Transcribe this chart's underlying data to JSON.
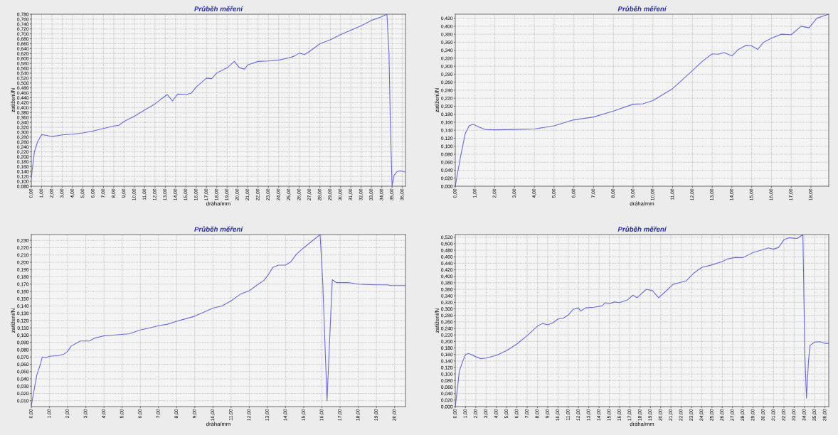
{
  "chart_data": [
    {
      "type": "line",
      "title": "Průběh měření",
      "xlabel": "dráha/mm",
      "ylabel": "zatížení/N",
      "grid": true,
      "x": [
        0,
        0.3,
        0.6,
        1.0,
        1.5,
        2,
        3,
        4,
        5,
        6,
        7,
        8,
        8.5,
        9,
        10,
        11,
        12,
        12.5,
        13.2,
        13.7,
        14.2,
        15,
        15.5,
        16,
        17,
        17.5,
        18,
        19,
        19.7,
        20.2,
        20.7,
        21,
        22,
        23,
        24,
        25,
        25.5,
        26,
        26.5,
        27,
        28,
        29,
        30,
        31,
        32,
        33,
        34,
        34.5,
        34.7,
        34.85,
        35.0,
        35.2,
        35.5,
        35.8,
        36.3
      ],
      "series": [
        {
          "color": "#6a6ae0",
          "values": [
            0.115,
            0.22,
            0.26,
            0.29,
            0.287,
            0.282,
            0.289,
            0.292,
            0.297,
            0.305,
            0.315,
            0.325,
            0.328,
            0.344,
            0.365,
            0.39,
            0.415,
            0.432,
            0.453,
            0.427,
            0.455,
            0.453,
            0.458,
            0.484,
            0.52,
            0.518,
            0.541,
            0.562,
            0.588,
            0.562,
            0.557,
            0.574,
            0.588,
            0.59,
            0.593,
            0.603,
            0.609,
            0.622,
            0.616,
            0.629,
            0.66,
            0.676,
            0.697,
            0.715,
            0.733,
            0.755,
            0.77,
            0.78,
            0.62,
            0.3,
            0.08,
            0.125,
            0.14,
            0.143,
            0.138
          ]
        }
      ],
      "xlim": [
        0,
        36.3
      ],
      "ylim": [
        0.08,
        0.78
      ],
      "xticks": [
        {
          "value": 0,
          "label": "0,00"
        },
        {
          "value": 1,
          "label": "1,00"
        },
        {
          "value": 2,
          "label": "2,00"
        },
        {
          "value": 3,
          "label": "3,00"
        },
        {
          "value": 4,
          "label": "4,00"
        },
        {
          "value": 5,
          "label": "5,00"
        },
        {
          "value": 6,
          "label": "6,00"
        },
        {
          "value": 7,
          "label": "7,00"
        },
        {
          "value": 8,
          "label": "8,00"
        },
        {
          "value": 9,
          "label": "9,00"
        },
        {
          "value": 10,
          "label": "10,00"
        },
        {
          "value": 11,
          "label": "11,00"
        },
        {
          "value": 12,
          "label": "12,00"
        },
        {
          "value": 13,
          "label": "13,00"
        },
        {
          "value": 14,
          "label": "14,00"
        },
        {
          "value": 15,
          "label": "15,00"
        },
        {
          "value": 16,
          "label": "16,00"
        },
        {
          "value": 17,
          "label": "17,00"
        },
        {
          "value": 18,
          "label": "18,00"
        },
        {
          "value": 19,
          "label": "19,00"
        },
        {
          "value": 20,
          "label": "20,00"
        },
        {
          "value": 21,
          "label": "21,00"
        },
        {
          "value": 22,
          "label": "22,00"
        },
        {
          "value": 23,
          "label": "23,00"
        },
        {
          "value": 24,
          "label": "24,00"
        },
        {
          "value": 25,
          "label": "25,00"
        },
        {
          "value": 26,
          "label": "26,00"
        },
        {
          "value": 27,
          "label": "27,00"
        },
        {
          "value": 28,
          "label": "28,00"
        },
        {
          "value": 29,
          "label": "29,00"
        },
        {
          "value": 30,
          "label": "30,00"
        },
        {
          "value": 31,
          "label": "31,00"
        },
        {
          "value": 32,
          "label": "32,00"
        },
        {
          "value": 33,
          "label": "33,00"
        },
        {
          "value": 34,
          "label": "34,00"
        },
        {
          "value": 35,
          "label": "35,00"
        },
        {
          "value": 36,
          "label": "36,00"
        }
      ],
      "yticks": [
        {
          "value": 0.08,
          "label": "0,080"
        },
        {
          "value": 0.1,
          "label": "0,100"
        },
        {
          "value": 0.12,
          "label": "0,120"
        },
        {
          "value": 0.14,
          "label": "0,140"
        },
        {
          "value": 0.16,
          "label": "0,160"
        },
        {
          "value": 0.18,
          "label": "0,180"
        },
        {
          "value": 0.2,
          "label": "0,200"
        },
        {
          "value": 0.22,
          "label": "0,220"
        },
        {
          "value": 0.24,
          "label": "0,240"
        },
        {
          "value": 0.26,
          "label": "0,260"
        },
        {
          "value": 0.28,
          "label": "0,280"
        },
        {
          "value": 0.3,
          "label": "0,300"
        },
        {
          "value": 0.32,
          "label": "0,320"
        },
        {
          "value": 0.34,
          "label": "0,340"
        },
        {
          "value": 0.36,
          "label": "0,360"
        },
        {
          "value": 0.38,
          "label": "0,380"
        },
        {
          "value": 0.4,
          "label": "0,400"
        },
        {
          "value": 0.42,
          "label": "0,420"
        },
        {
          "value": 0.44,
          "label": "0,440"
        },
        {
          "value": 0.46,
          "label": "0,460"
        },
        {
          "value": 0.48,
          "label": "0,480"
        },
        {
          "value": 0.5,
          "label": "0,500"
        },
        {
          "value": 0.52,
          "label": "0,520"
        },
        {
          "value": 0.54,
          "label": "0,540"
        },
        {
          "value": 0.56,
          "label": "0,560"
        },
        {
          "value": 0.58,
          "label": "0,580"
        },
        {
          "value": 0.6,
          "label": "0,600"
        },
        {
          "value": 0.62,
          "label": "0,620"
        },
        {
          "value": 0.64,
          "label": "0,640"
        },
        {
          "value": 0.66,
          "label": "0,660"
        },
        {
          "value": 0.68,
          "label": "0,680"
        },
        {
          "value": 0.7,
          "label": "0,700"
        },
        {
          "value": 0.72,
          "label": "0,720"
        },
        {
          "value": 0.74,
          "label": "0,740"
        },
        {
          "value": 0.76,
          "label": "0,760"
        },
        {
          "value": 0.78,
          "label": "0,780"
        }
      ]
    },
    {
      "type": "line",
      "title": "Průběh měření",
      "xlabel": "dráha/mm",
      "ylabel": "zatížení/N",
      "grid": true,
      "x": [
        0,
        0.25,
        0.5,
        0.7,
        0.9,
        1.2,
        1.5,
        2,
        3,
        4,
        5,
        6,
        7,
        8,
        9,
        9.5,
        10,
        11,
        12,
        12.5,
        13,
        13.3,
        13.6,
        14,
        14.3,
        14.7,
        15,
        15.3,
        15.6,
        16,
        16.5,
        17,
        17.5,
        17.9,
        18.3,
        18.9
      ],
      "series": [
        {
          "color": "#6a6ae0",
          "values": [
            0.0,
            0.07,
            0.131,
            0.151,
            0.155,
            0.148,
            0.142,
            0.141,
            0.142,
            0.143,
            0.151,
            0.166,
            0.173,
            0.188,
            0.205,
            0.206,
            0.214,
            0.244,
            0.289,
            0.312,
            0.331,
            0.33,
            0.334,
            0.326,
            0.341,
            0.352,
            0.351,
            0.342,
            0.36,
            0.37,
            0.38,
            0.379,
            0.4,
            0.396,
            0.42,
            0.43
          ]
        }
      ],
      "xlim": [
        0,
        18.9
      ],
      "ylim": [
        0,
        0.43
      ],
      "xticks": [
        {
          "value": 0,
          "label": "0,00"
        },
        {
          "value": 1,
          "label": "1,00"
        },
        {
          "value": 2,
          "label": "2,00"
        },
        {
          "value": 3,
          "label": "3,00"
        },
        {
          "value": 4,
          "label": "4,00"
        },
        {
          "value": 5,
          "label": "5,00"
        },
        {
          "value": 6,
          "label": "6,00"
        },
        {
          "value": 7,
          "label": "7,00"
        },
        {
          "value": 8,
          "label": "8,00"
        },
        {
          "value": 9,
          "label": "9,00"
        },
        {
          "value": 10,
          "label": "10,00"
        },
        {
          "value": 11,
          "label": "11,00"
        },
        {
          "value": 12,
          "label": "12,00"
        },
        {
          "value": 13,
          "label": "13,00"
        },
        {
          "value": 14,
          "label": "14,00"
        },
        {
          "value": 15,
          "label": "15,00"
        },
        {
          "value": 16,
          "label": "16,00"
        },
        {
          "value": 17,
          "label": "17,00"
        },
        {
          "value": 18,
          "label": "18,00"
        }
      ],
      "yticks": [
        {
          "value": 0,
          "label": "0,000"
        },
        {
          "value": 0.02,
          "label": "0,020"
        },
        {
          "value": 0.04,
          "label": "0,040"
        },
        {
          "value": 0.06,
          "label": "0,060"
        },
        {
          "value": 0.08,
          "label": "0,080"
        },
        {
          "value": 0.1,
          "label": "0,100"
        },
        {
          "value": 0.12,
          "label": "0,120"
        },
        {
          "value": 0.14,
          "label": "0,140"
        },
        {
          "value": 0.16,
          "label": "0,160"
        },
        {
          "value": 0.18,
          "label": "0,180"
        },
        {
          "value": 0.2,
          "label": "0,200"
        },
        {
          "value": 0.22,
          "label": "0,220"
        },
        {
          "value": 0.24,
          "label": "0,240"
        },
        {
          "value": 0.26,
          "label": "0,260"
        },
        {
          "value": 0.28,
          "label": "0,280"
        },
        {
          "value": 0.3,
          "label": "0,300"
        },
        {
          "value": 0.32,
          "label": "0,320"
        },
        {
          "value": 0.34,
          "label": "0,340"
        },
        {
          "value": 0.36,
          "label": "0,360"
        },
        {
          "value": 0.38,
          "label": "0,380"
        },
        {
          "value": 0.4,
          "label": "0,400"
        },
        {
          "value": 0.42,
          "label": "0,420"
        }
      ]
    },
    {
      "type": "line",
      "title": "Průběh měření",
      "xlabel": "dráha/mm",
      "ylabel": "zatížení/N",
      "grid": true,
      "x": [
        0,
        0.3,
        0.5,
        0.6,
        0.8,
        1.0,
        1.5,
        1.8,
        2.0,
        2.2,
        2.7,
        3.2,
        3.5,
        4.0,
        4.5,
        5.0,
        5.4,
        6.0,
        6.7,
        7.0,
        7.5,
        8.0,
        9.0,
        10.0,
        10.5,
        11.0,
        11.5,
        12.0,
        12.5,
        12.8,
        13.0,
        13.3,
        13.6,
        14.0,
        14.3,
        14.6,
        15.0,
        15.5,
        15.9,
        16.05,
        16.28,
        16.57,
        16.8,
        17.5,
        18,
        19,
        19.6,
        19.8,
        20.6
      ],
      "series": [
        {
          "color": "#6a6ae0",
          "values": [
            0.003,
            0.045,
            0.06,
            0.07,
            0.069,
            0.071,
            0.072,
            0.074,
            0.078,
            0.085,
            0.092,
            0.092,
            0.096,
            0.099,
            0.1,
            0.101,
            0.102,
            0.107,
            0.111,
            0.113,
            0.115,
            0.119,
            0.126,
            0.137,
            0.14,
            0.147,
            0.156,
            0.161,
            0.17,
            0.175,
            0.181,
            0.193,
            0.196,
            0.196,
            0.201,
            0.211,
            0.22,
            0.23,
            0.238,
            0.17,
            0.01,
            0.176,
            0.172,
            0.172,
            0.17,
            0.169,
            0.169,
            0.168,
            0.168
          ]
        }
      ],
      "xlim": [
        0,
        20.6
      ],
      "ylim": [
        0.002,
        0.238
      ],
      "xticks": [
        {
          "value": 0,
          "label": "0,00"
        },
        {
          "value": 1,
          "label": "1,00"
        },
        {
          "value": 2,
          "label": "2,00"
        },
        {
          "value": 3,
          "label": "3,00"
        },
        {
          "value": 4,
          "label": "4,00"
        },
        {
          "value": 5,
          "label": "5,00"
        },
        {
          "value": 6,
          "label": "6,00"
        },
        {
          "value": 7,
          "label": "7,00"
        },
        {
          "value": 8,
          "label": "8,00"
        },
        {
          "value": 9,
          "label": "9,00"
        },
        {
          "value": 10,
          "label": "10,00"
        },
        {
          "value": 11,
          "label": "11,00"
        },
        {
          "value": 12,
          "label": "12,00"
        },
        {
          "value": 13,
          "label": "13,00"
        },
        {
          "value": 14,
          "label": "14,00"
        },
        {
          "value": 15,
          "label": "15,00"
        },
        {
          "value": 16,
          "label": "16,00"
        },
        {
          "value": 17,
          "label": "17,00"
        },
        {
          "value": 18,
          "label": "18,00"
        },
        {
          "value": 19,
          "label": "19,00"
        },
        {
          "value": 20,
          "label": "20,00"
        }
      ],
      "yticks": [
        {
          "value": 0.01,
          "label": "0,010"
        },
        {
          "value": 0.02,
          "label": "0,020"
        },
        {
          "value": 0.03,
          "label": "0,030"
        },
        {
          "value": 0.04,
          "label": "0,040"
        },
        {
          "value": 0.05,
          "label": "0,050"
        },
        {
          "value": 0.06,
          "label": "0,060"
        },
        {
          "value": 0.07,
          "label": "0,070"
        },
        {
          "value": 0.08,
          "label": "0,080"
        },
        {
          "value": 0.09,
          "label": "0,090"
        },
        {
          "value": 0.1,
          "label": "0,100"
        },
        {
          "value": 0.11,
          "label": "0,110"
        },
        {
          "value": 0.12,
          "label": "0,120"
        },
        {
          "value": 0.13,
          "label": "0,130"
        },
        {
          "value": 0.14,
          "label": "0,140"
        },
        {
          "value": 0.15,
          "label": "0,150"
        },
        {
          "value": 0.16,
          "label": "0,160"
        },
        {
          "value": 0.17,
          "label": "0,170"
        },
        {
          "value": 0.18,
          "label": "0,180"
        },
        {
          "value": 0.19,
          "label": "0,190"
        },
        {
          "value": 0.2,
          "label": "0,200"
        },
        {
          "value": 0.21,
          "label": "0,210"
        },
        {
          "value": 0.22,
          "label": "0,220"
        },
        {
          "value": 0.23,
          "label": "0,230"
        }
      ]
    },
    {
      "type": "line",
      "title": "Průběh měření",
      "xlabel": "dráha/mm",
      "ylabel": "zatížení/N",
      "grid": true,
      "x": [
        0,
        0.1,
        0.4,
        0.7,
        1.0,
        1.3,
        2,
        2.5,
        3,
        4,
        5,
        6,
        7,
        8,
        8.5,
        9,
        9.5,
        10,
        10.5,
        11,
        11.5,
        12,
        12.2,
        12.7,
        13.5,
        14.3,
        14.6,
        15,
        15.5,
        16,
        16.8,
        17.3,
        17.7,
        18.6,
        19.2,
        19.8,
        20.5,
        21.2,
        22,
        22.5,
        23.2,
        24,
        25,
        26,
        26.5,
        27.3,
        28,
        28.5,
        29,
        30,
        30.5,
        31,
        31.5,
        32,
        32.5,
        33.3,
        33.85,
        34.05,
        34.2,
        34.4,
        34.55,
        35,
        35.5,
        36,
        36.37
      ],
      "series": [
        {
          "color": "#6a6ae0",
          "values": [
            0.0,
            0.026,
            0.109,
            0.137,
            0.16,
            0.163,
            0.153,
            0.147,
            0.149,
            0.157,
            0.172,
            0.192,
            0.218,
            0.247,
            0.255,
            0.251,
            0.257,
            0.269,
            0.271,
            0.281,
            0.299,
            0.303,
            0.293,
            0.303,
            0.305,
            0.309,
            0.319,
            0.316,
            0.321,
            0.319,
            0.328,
            0.342,
            0.334,
            0.36,
            0.356,
            0.334,
            0.354,
            0.375,
            0.382,
            0.386,
            0.409,
            0.427,
            0.435,
            0.445,
            0.453,
            0.458,
            0.457,
            0.465,
            0.473,
            0.482,
            0.487,
            0.483,
            0.489,
            0.512,
            0.518,
            0.516,
            0.528,
            0.153,
            0.026,
            0.141,
            0.188,
            0.198,
            0.199,
            0.194,
            0.194
          ]
        }
      ],
      "xlim": [
        0,
        36.37
      ],
      "ylim": [
        0,
        0.528
      ],
      "xticks": [
        {
          "value": 0,
          "label": "0,00"
        },
        {
          "value": 1,
          "label": "1,00"
        },
        {
          "value": 2,
          "label": "2,00"
        },
        {
          "value": 3,
          "label": "3,00"
        },
        {
          "value": 4,
          "label": "4,00"
        },
        {
          "value": 5,
          "label": "5,00"
        },
        {
          "value": 6,
          "label": "6,00"
        },
        {
          "value": 7,
          "label": "7,00"
        },
        {
          "value": 8,
          "label": "8,00"
        },
        {
          "value": 9,
          "label": "9,00"
        },
        {
          "value": 10,
          "label": "10,00"
        },
        {
          "value": 11,
          "label": "11,00"
        },
        {
          "value": 12,
          "label": "12,00"
        },
        {
          "value": 13,
          "label": "13,00"
        },
        {
          "value": 14,
          "label": "14,00"
        },
        {
          "value": 15,
          "label": "15,00"
        },
        {
          "value": 16,
          "label": "16,00"
        },
        {
          "value": 17,
          "label": "17,00"
        },
        {
          "value": 18,
          "label": "18,00"
        },
        {
          "value": 19,
          "label": "19,00"
        },
        {
          "value": 20,
          "label": "20,00"
        },
        {
          "value": 21,
          "label": "21,00"
        },
        {
          "value": 22,
          "label": "22,00"
        },
        {
          "value": 23,
          "label": "23,00"
        },
        {
          "value": 24,
          "label": "24,00"
        },
        {
          "value": 25,
          "label": "25,00"
        },
        {
          "value": 26,
          "label": "26,00"
        },
        {
          "value": 27,
          "label": "27,00"
        },
        {
          "value": 28,
          "label": "28,00"
        },
        {
          "value": 29,
          "label": "29,00"
        },
        {
          "value": 30,
          "label": "30,00"
        },
        {
          "value": 31,
          "label": "31,00"
        },
        {
          "value": 32,
          "label": "32,00"
        },
        {
          "value": 33,
          "label": "33,00"
        },
        {
          "value": 34,
          "label": "34,00"
        },
        {
          "value": 35,
          "label": "35,00"
        },
        {
          "value": 36,
          "label": "36,00"
        }
      ],
      "yticks": [
        {
          "value": 0,
          "label": "0,000"
        },
        {
          "value": 0.02,
          "label": "0,020"
        },
        {
          "value": 0.04,
          "label": "0,040"
        },
        {
          "value": 0.06,
          "label": "0,060"
        },
        {
          "value": 0.08,
          "label": "0,080"
        },
        {
          "value": 0.1,
          "label": "0,100"
        },
        {
          "value": 0.12,
          "label": "0,120"
        },
        {
          "value": 0.14,
          "label": "0,140"
        },
        {
          "value": 0.16,
          "label": "0,160"
        },
        {
          "value": 0.18,
          "label": "0,180"
        },
        {
          "value": 0.2,
          "label": "0,200"
        },
        {
          "value": 0.22,
          "label": "0,220"
        },
        {
          "value": 0.24,
          "label": "0,240"
        },
        {
          "value": 0.26,
          "label": "0,260"
        },
        {
          "value": 0.28,
          "label": "0,280"
        },
        {
          "value": 0.3,
          "label": "0,300"
        },
        {
          "value": 0.32,
          "label": "0,320"
        },
        {
          "value": 0.34,
          "label": "0,340"
        },
        {
          "value": 0.36,
          "label": "0,360"
        },
        {
          "value": 0.38,
          "label": "0,380"
        },
        {
          "value": 0.4,
          "label": "0,400"
        },
        {
          "value": 0.42,
          "label": "0,420"
        },
        {
          "value": 0.44,
          "label": "0,440"
        },
        {
          "value": 0.46,
          "label": "0,460"
        },
        {
          "value": 0.48,
          "label": "0,480"
        },
        {
          "value": 0.5,
          "label": "0,500"
        },
        {
          "value": 0.52,
          "label": "0,520"
        }
      ]
    }
  ]
}
